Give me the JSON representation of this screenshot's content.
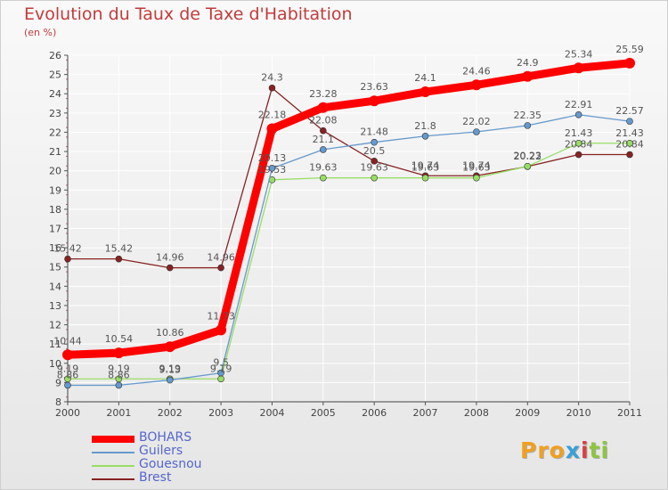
{
  "title": "Evolution du Taux de Taxe d'Habitation",
  "unit": "(en %)",
  "logo": {
    "parts": [
      "Pro",
      "x",
      "i",
      "ti"
    ],
    "colors": [
      "#f0a020",
      "#3aa0d8",
      "#d94040",
      "#8cc63f"
    ]
  },
  "chart_data": {
    "type": "line",
    "title": "Evolution du Taux de Taxe d'Habitation",
    "ylabel": "(en %)",
    "xlabel": "",
    "x": [
      "2000",
      "2001",
      "2002",
      "2003",
      "2004",
      "2005",
      "2006",
      "2007",
      "2008",
      "2009",
      "2010",
      "2011"
    ],
    "ylim": [
      8,
      26
    ],
    "yticks": [
      "8",
      "9",
      "10",
      "11",
      "12",
      "13",
      "14",
      "15",
      "16",
      "17",
      "18",
      "19",
      "20",
      "21",
      "22",
      "23",
      "24",
      "25",
      "26"
    ],
    "grid": true,
    "legend_position": "bottom-left",
    "series": [
      {
        "name": "BOHARS",
        "color": "#ff0000",
        "values": [
          10.44,
          10.54,
          10.86,
          11.73,
          22.18,
          23.28,
          23.63,
          24.1,
          24.46,
          24.9,
          25.34,
          25.59
        ],
        "labels": [
          "10.44",
          "10.54",
          "10.86",
          "11.73",
          "22.18",
          "23.28",
          "23.63",
          "24.1",
          "24.46",
          "24.9",
          "25.34",
          "25.59"
        ]
      },
      {
        "name": "Guilers",
        "color": "#6699cc",
        "values": [
          8.86,
          8.86,
          9.13,
          9.5,
          20.13,
          21.1,
          21.48,
          21.8,
          22.02,
          22.35,
          22.91,
          22.57
        ],
        "labels": [
          "8.86",
          "8.86",
          "9.13",
          "9.5",
          "20.13",
          "21.1",
          "21.48",
          "21.8",
          "22.02",
          "22.35",
          "22.91",
          "22.57"
        ]
      },
      {
        "name": "Gouesnou",
        "color": "#99dd66",
        "values": [
          9.19,
          9.19,
          9.19,
          9.19,
          19.53,
          19.63,
          19.63,
          19.63,
          19.63,
          20.23,
          21.43,
          21.43
        ],
        "labels": [
          "9.19",
          "9.19",
          "9.19",
          "9.19",
          "19.53",
          "19.63",
          "19.63",
          "19.63",
          "19.63",
          "20.23",
          "21.43",
          "21.43"
        ]
      },
      {
        "name": "Brest",
        "color": "#882222",
        "values": [
          15.42,
          15.42,
          14.96,
          14.96,
          24.3,
          22.08,
          20.5,
          19.74,
          19.74,
          20.22,
          20.84,
          20.84
        ],
        "labels": [
          "15.42",
          "15.42",
          "14.96",
          "14.96",
          "24.3",
          "22.08",
          "20.5",
          "19.74",
          "19.74",
          "20.22",
          "20.84",
          "20.84"
        ]
      }
    ]
  }
}
